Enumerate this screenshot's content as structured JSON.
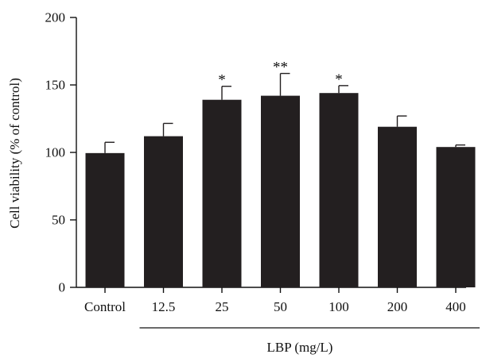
{
  "chart_data": {
    "type": "bar",
    "ylabel": "Cell viability (% of control)",
    "xlabel": "LBP (mg/L)",
    "categories": [
      "Control",
      "12.5",
      "25",
      "50",
      "100",
      "200",
      "400"
    ],
    "values": [
      99.5,
      112,
      139,
      142,
      144,
      119,
      104
    ],
    "errors": [
      8,
      9.5,
      10,
      16.5,
      5.5,
      8,
      1.5
    ],
    "annotations": [
      "",
      "",
      "*",
      "**",
      "*",
      "",
      ""
    ],
    "ylim": [
      0,
      200
    ],
    "yticks": [
      0,
      50,
      100,
      150,
      200
    ],
    "grid": false,
    "legend": "none",
    "bar_color": "#231f20"
  }
}
